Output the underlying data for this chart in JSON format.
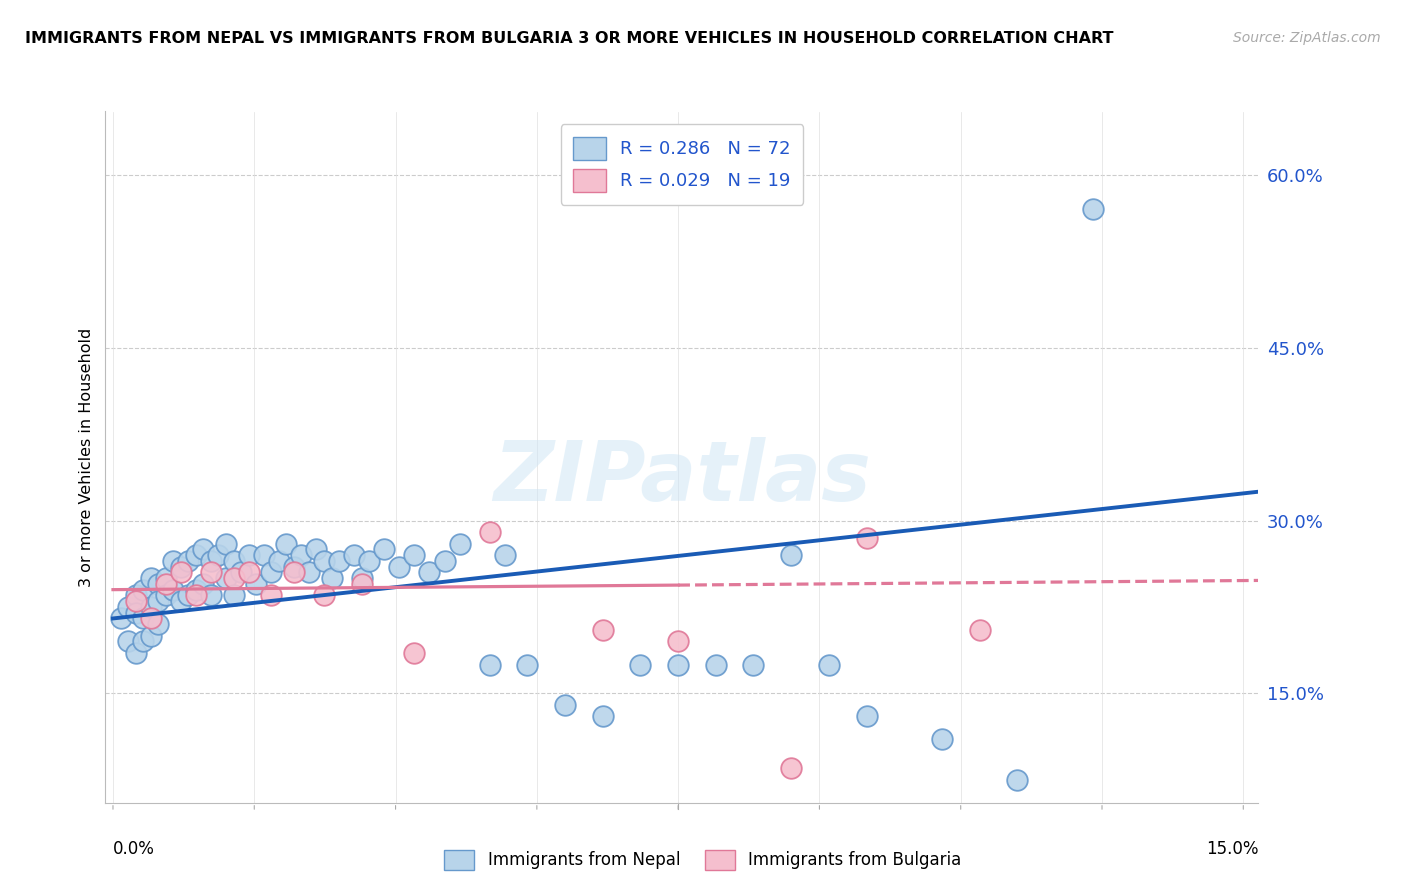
{
  "title": "IMMIGRANTS FROM NEPAL VS IMMIGRANTS FROM BULGARIA 3 OR MORE VEHICLES IN HOUSEHOLD CORRELATION CHART",
  "source": "Source: ZipAtlas.com",
  "ylabel": "3 or more Vehicles in Household",
  "xlim": [
    -0.001,
    0.152
  ],
  "ylim": [
    0.055,
    0.655
  ],
  "ytick_vals": [
    0.15,
    0.3,
    0.45,
    0.6
  ],
  "ytick_labels": [
    "15.0%",
    "30.0%",
    "45.0%",
    "60.0%"
  ],
  "xtick_left_label": "0.0%",
  "xtick_right_label": "15.0%",
  "nepal_color": "#b8d4ea",
  "nepal_edge": "#6699cc",
  "nepal_line_color": "#1a5bb5",
  "bulgaria_color": "#f5bfce",
  "bulgaria_edge": "#e07898",
  "bulgaria_line_color": "#e07898",
  "nepal_R": 0.286,
  "nepal_N": 72,
  "bulgaria_R": 0.029,
  "bulgaria_N": 19,
  "label_color": "#2255cc",
  "watermark": "ZIPatlas",
  "nepal_legend": "Immigrants from Nepal",
  "bulgaria_legend": "Immigrants from Bulgaria",
  "grid_color": "#cccccc",
  "bg_color": "#ffffff",
  "nepal_x": [
    0.001,
    0.002,
    0.002,
    0.003,
    0.003,
    0.003,
    0.004,
    0.004,
    0.004,
    0.005,
    0.005,
    0.005,
    0.006,
    0.006,
    0.006,
    0.007,
    0.007,
    0.008,
    0.008,
    0.009,
    0.009,
    0.01,
    0.01,
    0.011,
    0.011,
    0.012,
    0.012,
    0.013,
    0.013,
    0.014,
    0.015,
    0.015,
    0.016,
    0.016,
    0.017,
    0.018,
    0.019,
    0.02,
    0.021,
    0.022,
    0.023,
    0.024,
    0.025,
    0.026,
    0.027,
    0.028,
    0.029,
    0.03,
    0.032,
    0.033,
    0.034,
    0.036,
    0.038,
    0.04,
    0.042,
    0.044,
    0.046,
    0.05,
    0.052,
    0.055,
    0.06,
    0.065,
    0.07,
    0.075,
    0.08,
    0.085,
    0.09,
    0.095,
    0.1,
    0.11,
    0.12,
    0.13
  ],
  "nepal_y": [
    0.215,
    0.225,
    0.195,
    0.235,
    0.22,
    0.185,
    0.24,
    0.215,
    0.195,
    0.25,
    0.225,
    0.2,
    0.245,
    0.23,
    0.21,
    0.25,
    0.235,
    0.265,
    0.24,
    0.26,
    0.23,
    0.265,
    0.235,
    0.27,
    0.24,
    0.275,
    0.245,
    0.265,
    0.235,
    0.27,
    0.28,
    0.25,
    0.265,
    0.235,
    0.255,
    0.27,
    0.245,
    0.27,
    0.255,
    0.265,
    0.28,
    0.26,
    0.27,
    0.255,
    0.275,
    0.265,
    0.25,
    0.265,
    0.27,
    0.25,
    0.265,
    0.275,
    0.26,
    0.27,
    0.255,
    0.265,
    0.28,
    0.175,
    0.27,
    0.175,
    0.14,
    0.13,
    0.175,
    0.175,
    0.175,
    0.175,
    0.27,
    0.175,
    0.13,
    0.11,
    0.075,
    0.57
  ],
  "bulgaria_x": [
    0.003,
    0.005,
    0.007,
    0.009,
    0.011,
    0.013,
    0.016,
    0.018,
    0.021,
    0.024,
    0.028,
    0.033,
    0.04,
    0.05,
    0.065,
    0.075,
    0.09,
    0.1,
    0.115
  ],
  "bulgaria_y": [
    0.23,
    0.215,
    0.245,
    0.255,
    0.235,
    0.255,
    0.25,
    0.255,
    0.235,
    0.255,
    0.235,
    0.245,
    0.185,
    0.29,
    0.205,
    0.195,
    0.085,
    0.285,
    0.205
  ],
  "nepal_line_x0": 0.0,
  "nepal_line_x1": 0.152,
  "nepal_line_y0": 0.215,
  "nepal_line_y1": 0.325,
  "bulgaria_line_x0": 0.0,
  "bulgaria_line_x1": 0.152,
  "bulgaria_line_y0": 0.24,
  "bulgaria_line_y1": 0.248,
  "bulgaria_line_solid_x1": 0.075
}
